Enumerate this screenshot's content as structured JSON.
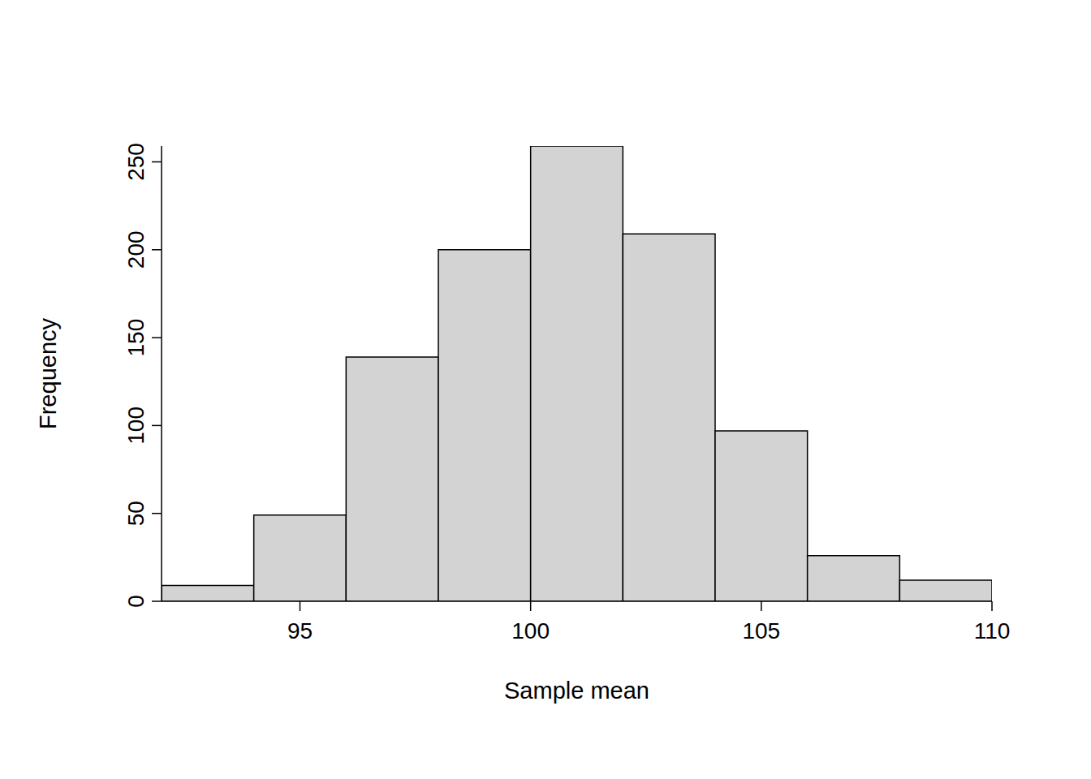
{
  "chart_data": {
    "type": "histogram",
    "x_label": "Sample mean",
    "y_label": "Frequency",
    "bins": [
      92,
      94,
      96,
      98,
      100,
      102,
      104,
      106,
      108,
      110
    ],
    "values": [
      9,
      49,
      139,
      200,
      259,
      209,
      97,
      26,
      12
    ],
    "color": "#d3d3d3",
    "xlim": [
      92,
      110
    ],
    "xticks": [
      95,
      100,
      105,
      110
    ],
    "ylim": [
      0,
      259
    ],
    "yticks": [
      0,
      50,
      100,
      150,
      200,
      250
    ],
    "grid": false
  }
}
